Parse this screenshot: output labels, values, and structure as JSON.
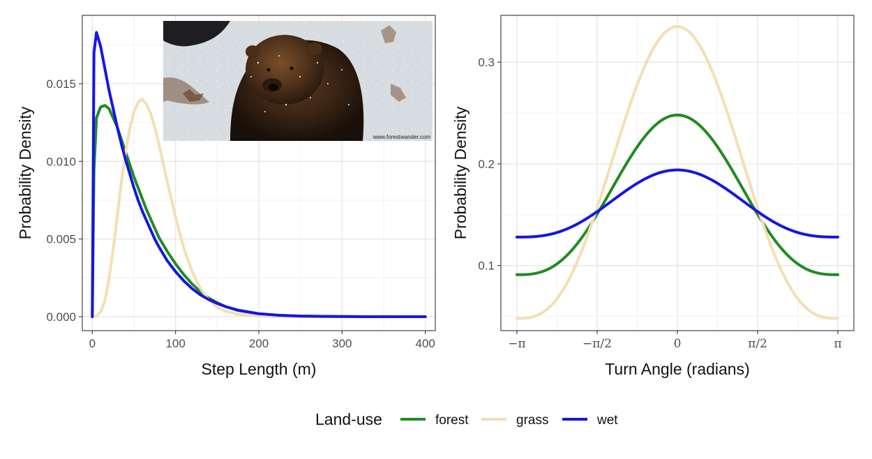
{
  "chart_data": [
    {
      "type": "line",
      "title": "",
      "xlabel": "Step Length (m)",
      "ylabel": "Probability Density",
      "xlim": [
        -12,
        412
      ],
      "ylim": [
        -0.0009,
        0.0194
      ],
      "x_ticks": [
        0,
        100,
        200,
        300,
        400
      ],
      "x_tick_labels": [
        "0",
        "100",
        "200",
        "300",
        "400"
      ],
      "y_ticks": [
        0.0,
        0.005,
        0.01,
        0.015
      ],
      "y_tick_labels": [
        "0.000",
        "0.005",
        "0.010",
        "0.015"
      ],
      "grid": true,
      "x": [
        0,
        2,
        5,
        10,
        15,
        20,
        25,
        30,
        35,
        40,
        45,
        50,
        55,
        60,
        65,
        70,
        75,
        80,
        90,
        100,
        110,
        120,
        130,
        140,
        150,
        160,
        175,
        200,
        225,
        250,
        275,
        300,
        325,
        350,
        375,
        400
      ],
      "series": [
        {
          "name": "forest",
          "color": "#228b22",
          "values": [
            0.0,
            0.0094,
            0.0128,
            0.0135,
            0.0136,
            0.0134,
            0.0128,
            0.0122,
            0.0114,
            0.0106,
            0.0098,
            0.009,
            0.0083,
            0.0076,
            0.0069,
            0.0063,
            0.0057,
            0.0051,
            0.0042,
            0.0034,
            0.0027,
            0.0021,
            0.0016,
            0.0012,
            0.0009,
            0.00065,
            0.0004,
            0.00018,
            8e-05,
            4e-05,
            2e-05,
            1e-05,
            0.0,
            0.0,
            0.0,
            0.0
          ]
        },
        {
          "name": "grass",
          "color": "#f5deb3",
          "values": [
            0.0,
            0.0,
            5e-05,
            0.0003,
            0.001,
            0.0024,
            0.0043,
            0.0065,
            0.0087,
            0.0106,
            0.0121,
            0.0132,
            0.0138,
            0.014,
            0.0137,
            0.0131,
            0.0122,
            0.0111,
            0.0087,
            0.0064,
            0.0044,
            0.0029,
            0.0018,
            0.0011,
            0.0006,
            0.00035,
            0.00015,
            3e-05,
            0.0,
            0.0,
            0.0,
            0.0,
            0.0,
            0.0,
            0.0,
            0.0
          ]
        },
        {
          "name": "wet",
          "color": "#1515e6",
          "values": [
            0.0,
            0.017,
            0.0183,
            0.0174,
            0.016,
            0.0146,
            0.0134,
            0.0122,
            0.0111,
            0.0101,
            0.0092,
            0.0083,
            0.0075,
            0.0068,
            0.0062,
            0.0056,
            0.005,
            0.0045,
            0.0036,
            0.0029,
            0.0023,
            0.0018,
            0.0014,
            0.0011,
            0.00085,
            0.00065,
            0.00042,
            0.00019,
            9e-05,
            4e-05,
            2e-05,
            1e-05,
            0.0,
            0.0,
            0.0,
            0.0
          ]
        }
      ]
    },
    {
      "type": "line",
      "title": "",
      "xlabel": "Turn Angle (radians)",
      "ylabel": "Probability Density",
      "xlim": [
        -3.455,
        3.455
      ],
      "ylim": [
        0.036,
        0.346
      ],
      "x_ticks": [
        -3.14159,
        -1.5708,
        0,
        1.5708,
        3.14159
      ],
      "x_tick_labels": [
        "−π",
        "−π/2",
        "0",
        "π/2",
        "π"
      ],
      "y_ticks": [
        0.1,
        0.2,
        0.3
      ],
      "y_tick_labels": [
        "0.1",
        "0.2",
        "0.3"
      ],
      "grid": true,
      "curve": "wrapped_cauchy_like",
      "series": [
        {
          "name": "forest",
          "color": "#228b22",
          "min": 0.091,
          "max": 0.248
        },
        {
          "name": "grass",
          "color": "#f5deb3",
          "min": 0.048,
          "max": 0.335
        },
        {
          "name": "wet",
          "color": "#1515e6",
          "min": 0.128,
          "max": 0.194
        }
      ]
    }
  ],
  "legend": {
    "title": "Land-use",
    "placement": "bottom",
    "items": [
      {
        "label": "forest",
        "color": "#228b22"
      },
      {
        "label": "grass",
        "color": "#f5deb3"
      },
      {
        "label": "wet",
        "color": "#1515e6"
      }
    ]
  },
  "inset_photo": {
    "description": "fisher in snow",
    "watermark": "www.forestwander.com"
  }
}
